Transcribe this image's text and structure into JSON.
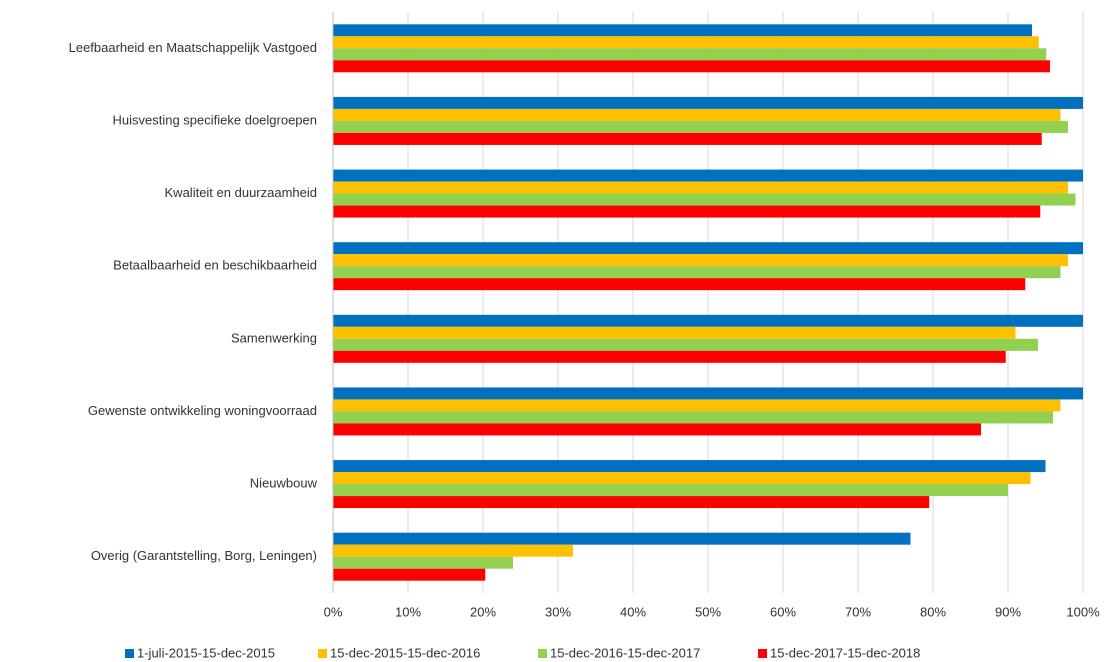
{
  "chart_data": {
    "type": "bar",
    "orientation": "horizontal",
    "categories": [
      "Leefbaarheid en Maatschappelijk Vastgoed",
      "Huisvesting specifieke doelgroepen",
      "Kwaliteit en duurzaamheid",
      "Betaalbaarheid en beschikbaarheid",
      "Samenwerking",
      "Gewenste ontwikkeling woningvoorraad",
      "Nieuwbouw",
      "Overig (Garantstelling, Borg, Leningen)"
    ],
    "series": [
      {
        "name": "1-juli-2015-15-dec-2015",
        "color": "#0070c0",
        "values": [
          93.2,
          100,
          100,
          100,
          100,
          100,
          95,
          77
        ]
      },
      {
        "name": "15-dec-2015-15-dec-2016",
        "color": "#ffc000",
        "values": [
          94.1,
          97,
          98,
          98,
          91,
          97,
          93,
          32
        ]
      },
      {
        "name": "15-dec-2016-15-dec-2017",
        "color": "#92d050",
        "values": [
          95.1,
          98,
          99,
          97,
          94,
          96,
          90,
          24
        ]
      },
      {
        "name": "15-dec-2017-15-dec-2018",
        "color": "#ff0000",
        "values": [
          95.6,
          94.5,
          94.3,
          92.3,
          89.7,
          86.4,
          79.5,
          20.3
        ]
      }
    ],
    "xlim": [
      0,
      100
    ],
    "xticks": [
      {
        "value": 0,
        "label": "0%"
      },
      {
        "value": 10,
        "label": "10%"
      },
      {
        "value": 20,
        "label": "20%"
      },
      {
        "value": 30,
        "label": "30%"
      },
      {
        "value": 40,
        "label": "40%"
      },
      {
        "value": 50,
        "label": "50%"
      },
      {
        "value": 60,
        "label": "60%"
      },
      {
        "value": 70,
        "label": "70%"
      },
      {
        "value": 80,
        "label": "80%"
      },
      {
        "value": 90,
        "label": "90%"
      },
      {
        "value": 100,
        "label": "100%"
      }
    ],
    "grid": true,
    "legend": "bottom"
  }
}
